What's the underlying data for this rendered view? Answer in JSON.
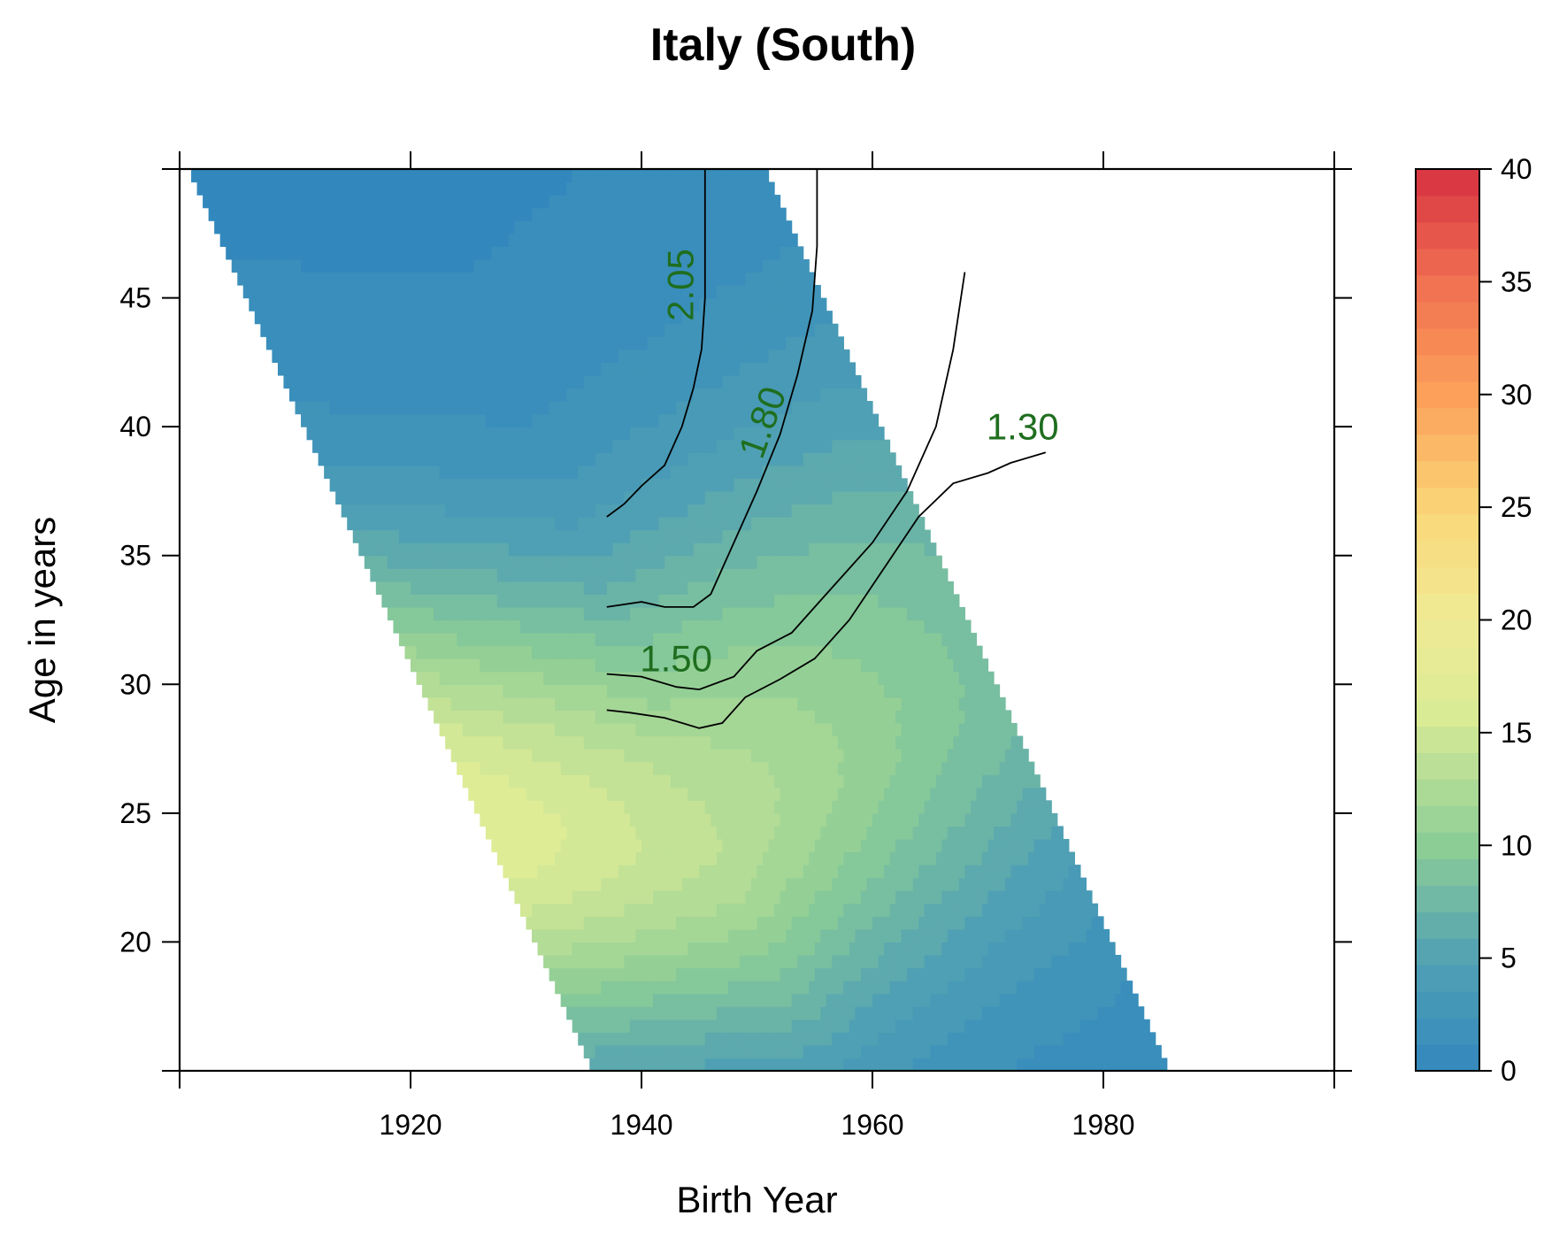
{
  "chart_data": {
    "type": "heatmap",
    "title": "Italy (South)",
    "xlabel": "Birth Year",
    "ylabel": "Age in years",
    "xlim": [
      1900,
      2000
    ],
    "ylim": [
      15,
      50
    ],
    "xticks": [
      1920,
      1940,
      1960,
      1980
    ],
    "yticks": [
      20,
      25,
      30,
      35,
      40,
      45
    ],
    "colorbar": {
      "min": 0,
      "max": 40,
      "ticks": [
        0,
        5,
        10,
        15,
        20,
        25,
        30,
        35,
        40
      ]
    },
    "data_domain": "period 1951-2000: birth year = period - age",
    "period_range": [
      1951,
      2000
    ],
    "age_range": [
      15,
      50
    ],
    "grid": false,
    "surface_peaks": [
      {
        "birth_year": 1941,
        "age": 25,
        "value": 17
      },
      {
        "birth_year": 1945,
        "age": 24,
        "value": 17
      }
    ],
    "contours": [
      {
        "label": "2.05",
        "label_at": [
          1944.5,
          45.5
        ],
        "points": [
          [
            1937,
            36.5
          ],
          [
            1938.5,
            37
          ],
          [
            1940,
            37.7
          ],
          [
            1942,
            38.5
          ],
          [
            1943.5,
            40
          ],
          [
            1944.5,
            41.5
          ],
          [
            1945.2,
            43
          ],
          [
            1945.5,
            45
          ],
          [
            1945.5,
            50
          ]
        ]
      },
      {
        "label": "1.80",
        "label_at": [
          1951.5,
          40
        ],
        "points": [
          [
            1937,
            33
          ],
          [
            1940,
            33.2
          ],
          [
            1942,
            33
          ],
          [
            1944.5,
            33
          ],
          [
            1946,
            33.5
          ],
          [
            1948,
            35.5
          ],
          [
            1950,
            37.5
          ],
          [
            1952,
            39.7
          ],
          [
            1953.5,
            42
          ],
          [
            1954.8,
            44.5
          ],
          [
            1955.2,
            47
          ],
          [
            1955.2,
            50
          ]
        ]
      },
      {
        "label": "1.50",
        "label_at": [
          1943,
          30.5
        ],
        "points": [
          [
            1937,
            30.4
          ],
          [
            1940,
            30.3
          ],
          [
            1943,
            29.9
          ],
          [
            1945,
            29.8
          ],
          [
            1948,
            30.3
          ],
          [
            1950,
            31.3
          ],
          [
            1953,
            32
          ],
          [
            1956,
            33.5
          ],
          [
            1960,
            35.5
          ],
          [
            1963,
            37.5
          ],
          [
            1965.5,
            40
          ],
          [
            1967,
            43
          ],
          [
            1968,
            46
          ]
        ]
      },
      {
        "label": "1.30",
        "label_at": [
          1973,
          39.5
        ],
        "points": [
          [
            1937,
            29
          ],
          [
            1939,
            28.9
          ],
          [
            1942,
            28.7
          ],
          [
            1945,
            28.3
          ],
          [
            1947,
            28.5
          ],
          [
            1949,
            29.5
          ],
          [
            1952,
            30.2
          ],
          [
            1955,
            31
          ],
          [
            1958,
            32.5
          ],
          [
            1961,
            34.5
          ],
          [
            1964,
            36.5
          ],
          [
            1967,
            37.8
          ],
          [
            1970,
            38.2
          ],
          [
            1972,
            38.6
          ],
          [
            1975,
            39
          ]
        ]
      }
    ]
  }
}
